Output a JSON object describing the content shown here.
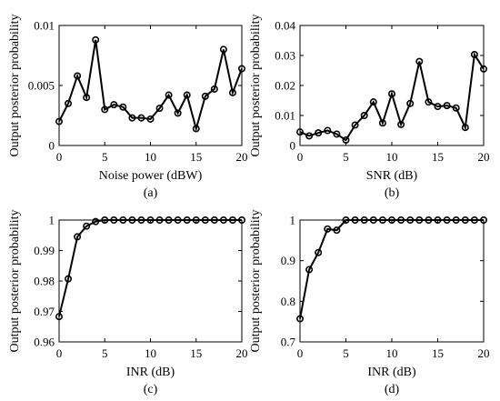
{
  "chart_data": [
    {
      "type": "line",
      "caption": "(a)",
      "xlabel": "Noise power (dBW)",
      "ylabel": "Output posterior probability",
      "xlim": [
        0,
        20
      ],
      "ylim": [
        0,
        0.01
      ],
      "xticks": [
        "0",
        "5",
        "10",
        "15",
        "20"
      ],
      "yticks": [
        "0",
        "0.005",
        "0.01"
      ],
      "grid": false,
      "series": [
        {
          "x": [
            0,
            1,
            2,
            3,
            4,
            5,
            6,
            7,
            8,
            9,
            10,
            11,
            12,
            13,
            14,
            15,
            16,
            17,
            18,
            19,
            20
          ],
          "values": [
            0.002,
            0.0035,
            0.0058,
            0.004,
            0.0088,
            0.003,
            0.0034,
            0.0032,
            0.0023,
            0.0023,
            0.0022,
            0.0031,
            0.0042,
            0.0027,
            0.0042,
            0.0014,
            0.0041,
            0.0047,
            0.008,
            0.0044,
            0.0064
          ]
        }
      ]
    },
    {
      "type": "line",
      "caption": "(b)",
      "xlabel": "SNR (dB)",
      "ylabel": "Output posterior probability",
      "xlim": [
        0,
        20
      ],
      "ylim": [
        0,
        0.04
      ],
      "xticks": [
        "0",
        "5",
        "10",
        "15",
        "20"
      ],
      "yticks": [
        "0",
        "0.01",
        "0.02",
        "0.03",
        "0.04"
      ],
      "grid": false,
      "series": [
        {
          "x": [
            0,
            1,
            2,
            3,
            4,
            5,
            6,
            7,
            8,
            9,
            10,
            11,
            12,
            13,
            14,
            15,
            16,
            17,
            18,
            19,
            20
          ],
          "values": [
            0.0045,
            0.0032,
            0.0042,
            0.005,
            0.0038,
            0.0018,
            0.0068,
            0.01,
            0.0145,
            0.0075,
            0.0172,
            0.007,
            0.014,
            0.028,
            0.0145,
            0.013,
            0.0133,
            0.0125,
            0.006,
            0.0303,
            0.0255
          ]
        }
      ]
    },
    {
      "type": "line",
      "caption": "(c)",
      "xlabel": "INR (dB)",
      "ylabel": "Output posterior probability",
      "xlim": [
        0,
        20
      ],
      "ylim": [
        0.96,
        1.0
      ],
      "xticks": [
        "0",
        "5",
        "10",
        "15",
        "20"
      ],
      "yticks": [
        "0.96",
        "0.97",
        "0.98",
        "0.99",
        "1"
      ],
      "grid": false,
      "series": [
        {
          "x": [
            0,
            1,
            2,
            3,
            4,
            5,
            6,
            7,
            8,
            9,
            10,
            11,
            12,
            13,
            14,
            15,
            16,
            17,
            18,
            19,
            20
          ],
          "values": [
            0.9683,
            0.9807,
            0.9945,
            0.998,
            0.9995,
            1,
            1,
            1,
            1,
            1,
            1,
            1,
            1,
            1,
            1,
            1,
            1,
            1,
            1,
            1,
            1
          ]
        }
      ]
    },
    {
      "type": "line",
      "caption": "(d)",
      "xlabel": "INR (dB)",
      "ylabel": "Output posterior probability",
      "xlim": [
        0,
        20
      ],
      "ylim": [
        0.7,
        1.0
      ],
      "xticks": [
        "0",
        "5",
        "10",
        "15",
        "20"
      ],
      "yticks": [
        "0.7",
        "0.8",
        "0.9",
        "1"
      ],
      "grid": false,
      "series": [
        {
          "x": [
            0,
            1,
            2,
            3,
            4,
            5,
            6,
            7,
            8,
            9,
            10,
            11,
            12,
            13,
            14,
            15,
            16,
            17,
            18,
            19,
            20
          ],
          "values": [
            0.757,
            0.878,
            0.92,
            0.978,
            0.975,
            1,
            1,
            1,
            1,
            1,
            1,
            1,
            1,
            1,
            1,
            1,
            1,
            1,
            1,
            1,
            1
          ]
        }
      ]
    }
  ]
}
